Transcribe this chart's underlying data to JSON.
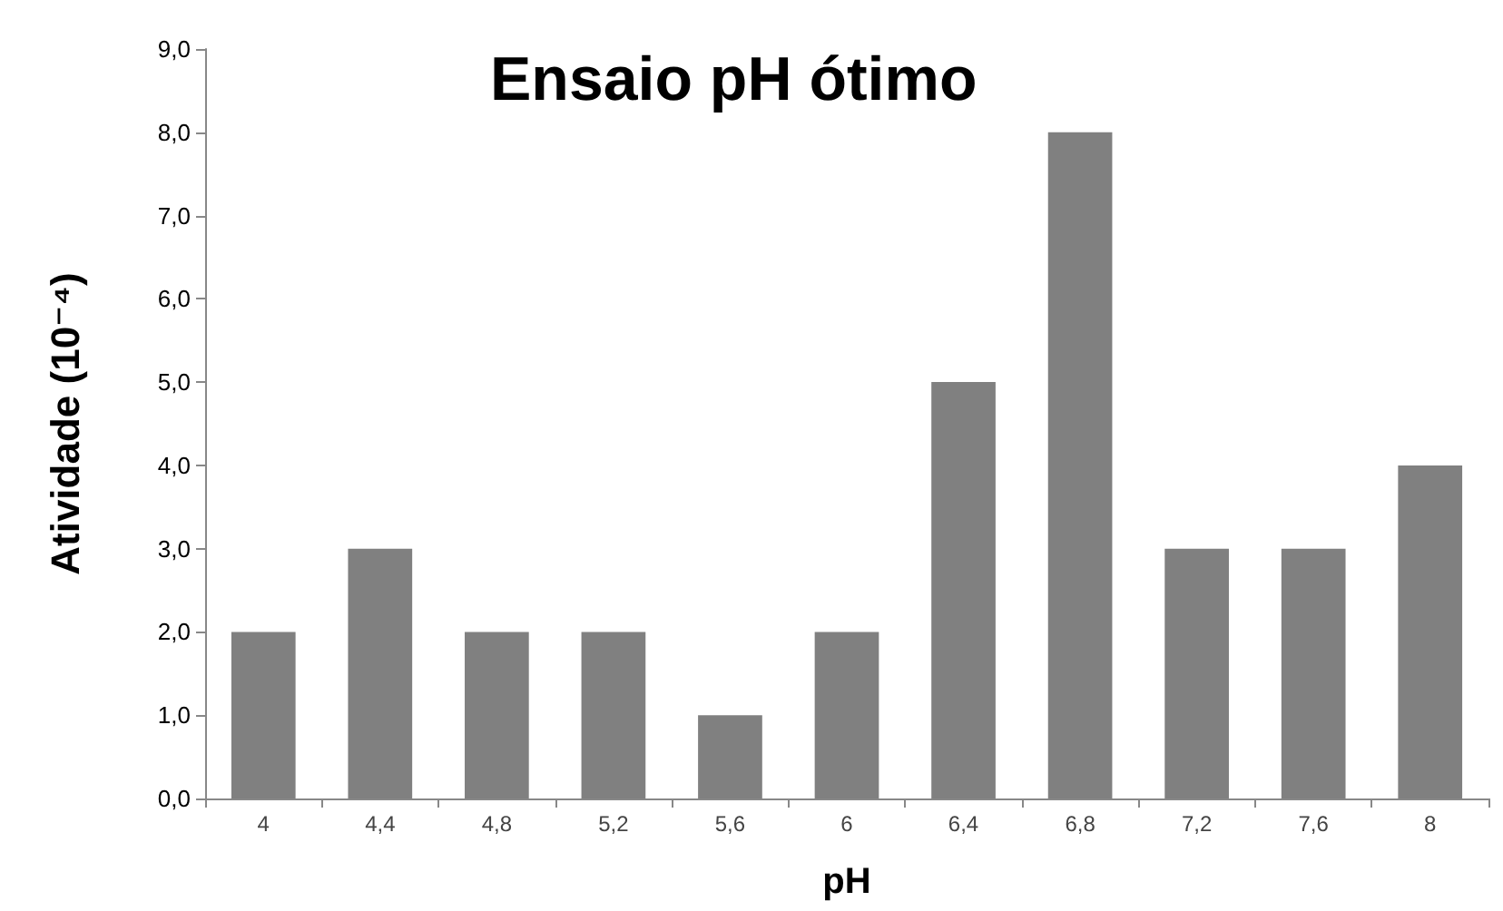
{
  "chart_data": {
    "type": "bar",
    "title": "Ensaio pH ótimo",
    "xlabel": "pH",
    "ylabel": "Atividade (10⁻⁴)",
    "categories": [
      "4",
      "4,4",
      "4,8",
      "5,2",
      "5,6",
      "6",
      "6,4",
      "6,8",
      "7,2",
      "7,6",
      "8"
    ],
    "values": [
      2,
      3,
      2,
      2,
      1,
      2,
      5,
      8,
      3,
      3,
      4
    ],
    "color": "#808080",
    "ylim": [
      0,
      9
    ],
    "yticks": [
      {
        "value": 0,
        "label": "0,0"
      },
      {
        "value": 1,
        "label": "1,0"
      },
      {
        "value": 2,
        "label": "2,0"
      },
      {
        "value": 3,
        "label": "3,0"
      },
      {
        "value": 4,
        "label": "4,0"
      },
      {
        "value": 5,
        "label": "5,0"
      },
      {
        "value": 6,
        "label": "6,0"
      },
      {
        "value": 7,
        "label": "7,0"
      },
      {
        "value": 8,
        "label": "8,0"
      },
      {
        "value": 9,
        "label": "9,0"
      }
    ],
    "grid": false
  }
}
